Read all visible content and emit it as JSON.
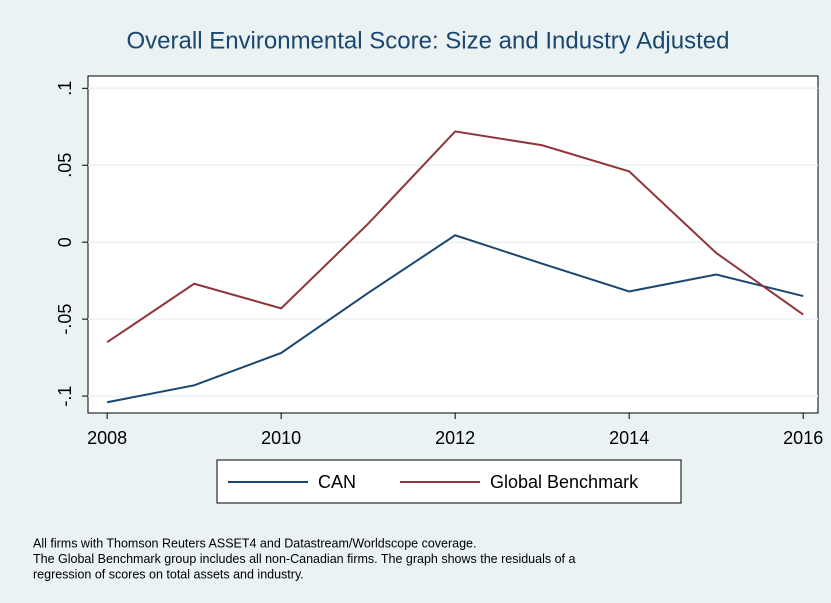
{
  "chart_data": {
    "type": "line",
    "title": "Overall Environmental Score: Size and Industry Adjusted",
    "x": [
      2008,
      2009,
      2010,
      2011,
      2012,
      2013,
      2014,
      2015,
      2016
    ],
    "series": [
      {
        "name": "CAN",
        "color": "#1a476f",
        "values": [
          -0.104,
          -0.093,
          -0.072,
          -0.033,
          0.0045,
          -0.014,
          -0.032,
          -0.021,
          -0.035
        ]
      },
      {
        "name": "Global Benchmark",
        "color": "#90353b",
        "values": [
          -0.065,
          -0.027,
          -0.043,
          0.012,
          0.072,
          0.063,
          0.046,
          -0.007,
          -0.047
        ]
      }
    ],
    "xlim": [
      2007.78,
      2016.17
    ],
    "ylim": [
      -0.111,
      0.108
    ],
    "xticks": [
      2008,
      2010,
      2012,
      2014,
      2016
    ],
    "yticks": [
      {
        "value": -0.1,
        "label": "-.1"
      },
      {
        "value": -0.05,
        "label": "-.05"
      },
      0,
      {
        "value": 0.05,
        "label": ".05"
      },
      {
        "value": 0.1,
        "label": ".1"
      }
    ],
    "grid": true,
    "legend": "bottom",
    "notes": [
      "All firms with Thomson Reuters ASSET4 and Datastream/Worldscope coverage.",
      "The Global Benchmark group includes all non-Canadian firms. The graph shows the residuals of a",
      "regression of scores on total assets and industry."
    ]
  }
}
